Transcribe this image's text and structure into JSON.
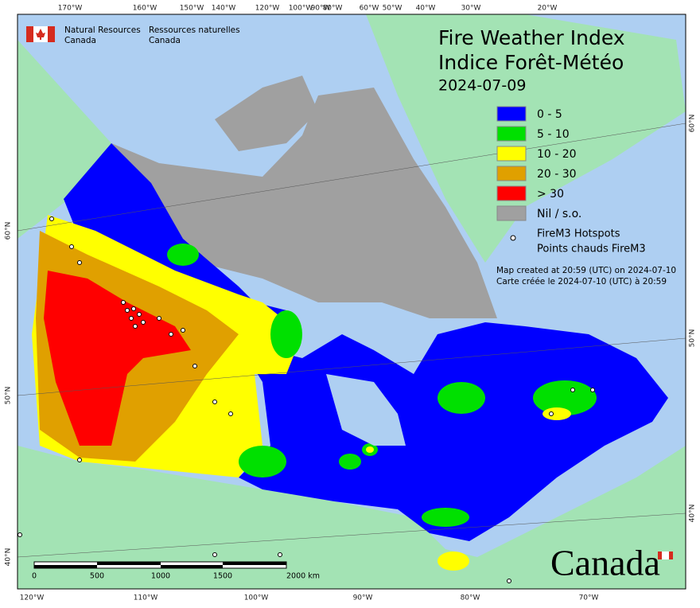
{
  "header": {
    "agency_en": "Natural Resources",
    "agency_en2": "Canada",
    "agency_fr": "Ressources naturelles",
    "agency_fr2": "Canada"
  },
  "title": {
    "line1": "Fire Weather Index",
    "line2": "Indice Forêt-Météo",
    "date": "2024-07-09"
  },
  "legend": [
    {
      "label": "0 - 5",
      "color": "#0000ff"
    },
    {
      "label": "5 - 10",
      "color": "#00e000"
    },
    {
      "label": "10 - 20",
      "color": "#ffff00"
    },
    {
      "label": "20 - 30",
      "color": "#e0a000"
    },
    {
      "label": "> 30",
      "color": "#ff0000"
    },
    {
      "label": "Nil / s.o.",
      "color": "#a0a0a0"
    }
  ],
  "hotspots": {
    "label_en": "FireM3 Hotspots",
    "label_fr": "Points chauds FireM3"
  },
  "credits": {
    "en": "Map created at 20:59 (UTC) on 2024-07-10",
    "fr": "Carte créée le 2024-07-10 (UTC) à 20:59"
  },
  "graticule": {
    "top": [
      "170°W",
      "160°W",
      "150°W",
      "140°W",
      "120°W",
      "100°W",
      "90°W",
      "80°W",
      "60°W",
      "50°W",
      "40°W",
      "30°W",
      "20°W"
    ],
    "bottom": [
      "120°W",
      "110°W",
      "100°W",
      "90°W",
      "80°W",
      "70°W"
    ],
    "left": [
      "60°N",
      "50°N",
      "40°N"
    ],
    "right": [
      "60°N",
      "50°N",
      "40°N"
    ]
  },
  "scale_bar": [
    "0",
    "500",
    "1000",
    "1500",
    "2000 km"
  ],
  "wordmark": "Canada"
}
